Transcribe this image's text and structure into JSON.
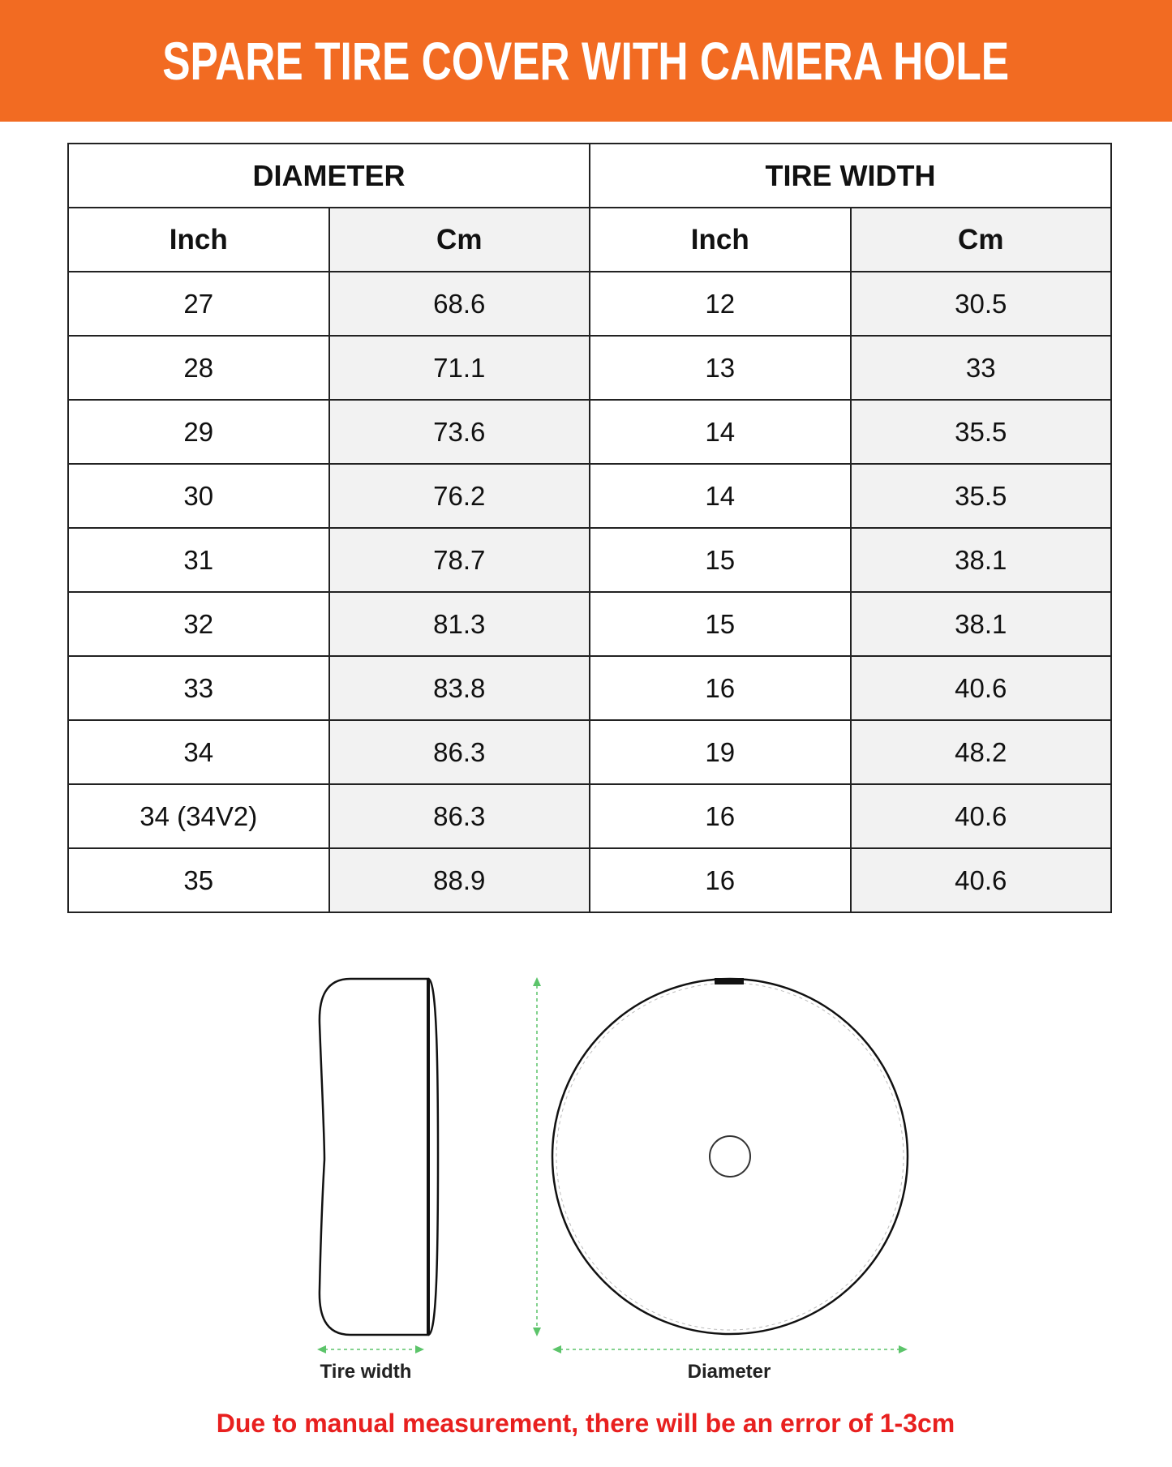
{
  "title": "SPARE TIRE COVER WITH CAMERA HOLE",
  "table": {
    "groups": [
      "DIAMETER",
      "TIRE WIDTH"
    ],
    "columns": [
      "Inch",
      "Cm",
      "Inch",
      "Cm"
    ],
    "rows": [
      [
        "27",
        "68.6",
        "12",
        "30.5"
      ],
      [
        "28",
        "71.1",
        "13",
        "33"
      ],
      [
        "29",
        "73.6",
        "14",
        "35.5"
      ],
      [
        "30",
        "76.2",
        "14",
        "35.5"
      ],
      [
        "31",
        "78.7",
        "15",
        "38.1"
      ],
      [
        "32",
        "81.3",
        "15",
        "38.1"
      ],
      [
        "33",
        "83.8",
        "16",
        "40.6"
      ],
      [
        "34",
        "86.3",
        "19",
        "48.2"
      ],
      [
        "34 (34V2)",
        "86.3",
        "16",
        "40.6"
      ],
      [
        "35",
        "88.9",
        "16",
        "40.6"
      ]
    ]
  },
  "diagram": {
    "tire_width_label": "Tire width",
    "diameter_label": "Diameter",
    "arrow_color": "#5cc46a"
  },
  "note": "Due to manual measurement, there will be an error of 1-3cm",
  "colors": {
    "header": "#f26b22",
    "note": "#e8201f",
    "shaded_column": "#f2f2f2"
  }
}
